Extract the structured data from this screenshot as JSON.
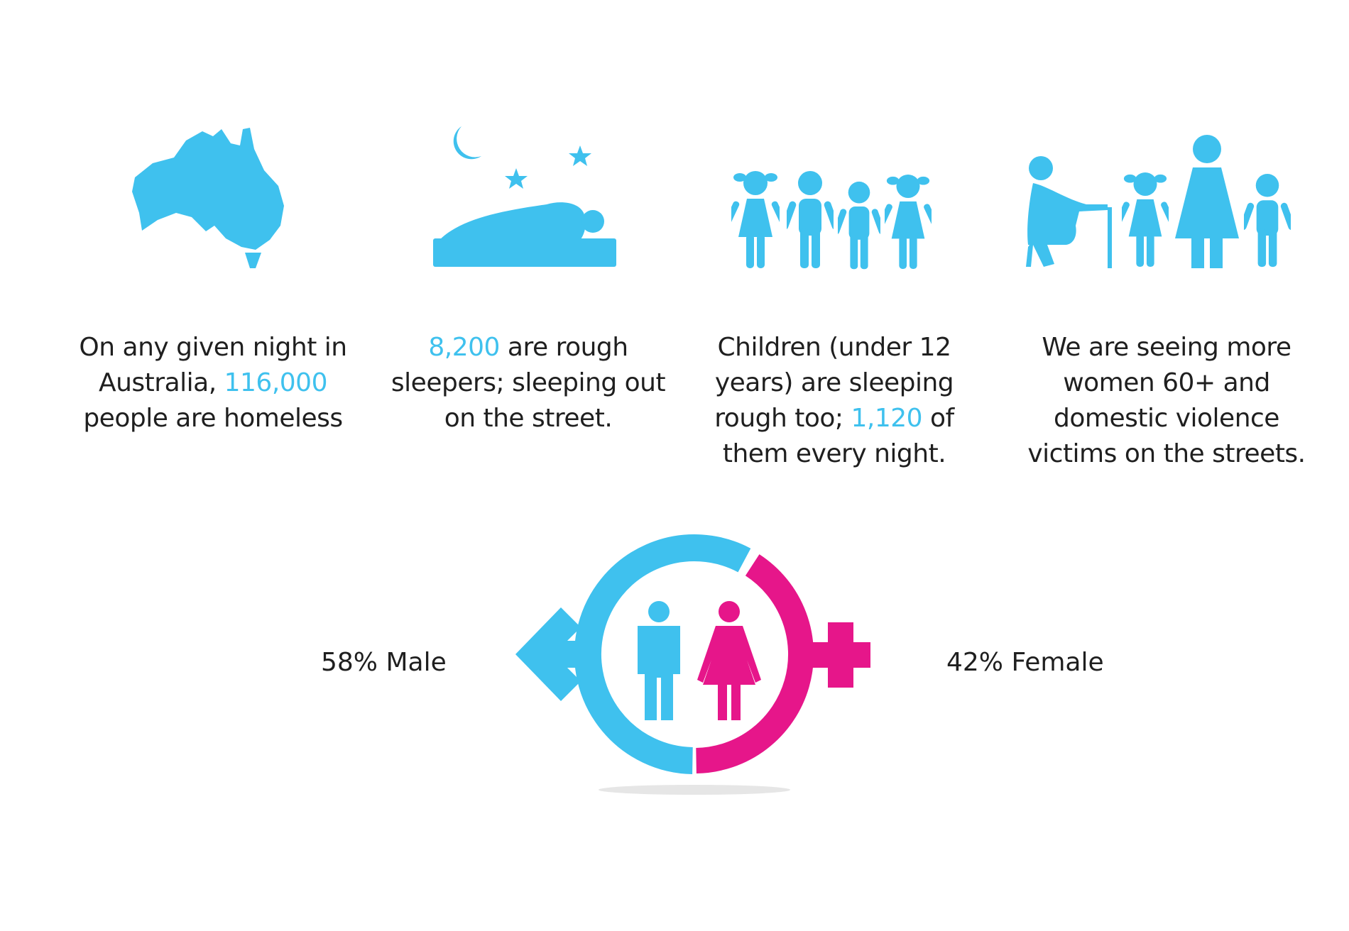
{
  "stats": [
    {
      "segments": [
        {
          "text": "On any given night in Australia,",
          "highlight": false
        },
        {
          "text": "116,000",
          "highlight": true
        },
        {
          "text": "people are homeless",
          "highlight": false
        }
      ]
    },
    {
      "segments": [
        {
          "text": "8,200",
          "highlight": true
        },
        {
          "text": "are rough sleepers; sleeping out on the street.",
          "highlight": false
        }
      ]
    },
    {
      "segments": [
        {
          "text": "Children (under 12 years) are sleeping rough too;",
          "highlight": false
        },
        {
          "text": "1,120",
          "highlight": true
        },
        {
          "text": "of them every night.",
          "highlight": false
        }
      ]
    },
    {
      "segments": [
        {
          "text": "We are seeing more women 60+ and domestic violence victims on the streets.",
          "highlight": false
        }
      ]
    }
  ],
  "gender": {
    "male": "58% Male",
    "female": "42% Female"
  },
  "colors": {
    "highlight": "#3fc1ee",
    "text": "#1f1f1f"
  }
}
